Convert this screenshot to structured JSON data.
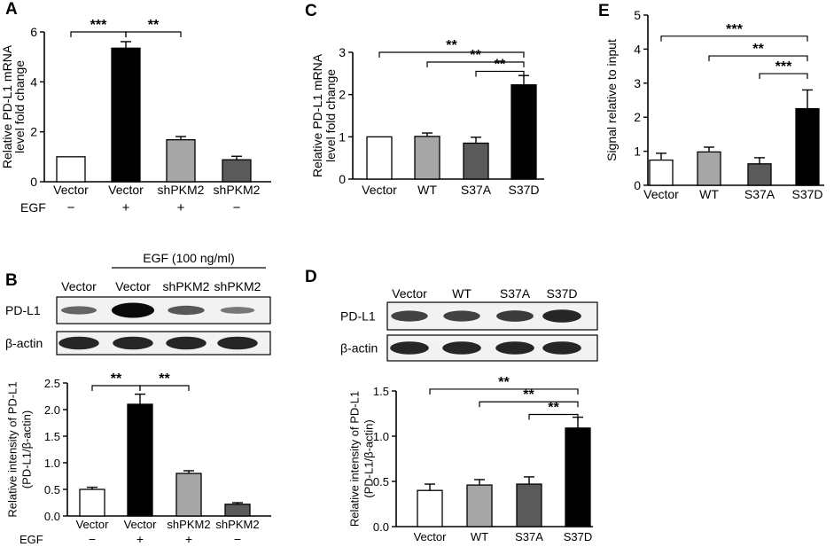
{
  "panels": {
    "A": "A",
    "B": "B",
    "C": "C",
    "D": "D",
    "E": "E"
  },
  "colors": {
    "white": "#ffffff",
    "black": "#000000",
    "light_gray": "#a6a6a6",
    "dark_gray": "#5a5a5a"
  },
  "chart_data": [
    {
      "id": "A",
      "type": "bar",
      "categories": [
        "Vector",
        "Vector",
        "shPKM2",
        "shPKM2"
      ],
      "values": [
        1.0,
        5.35,
        1.68,
        0.88
      ],
      "errors": [
        0.0,
        0.26,
        0.13,
        0.14
      ],
      "fills": [
        "white",
        "black",
        "light_gray",
        "dark_gray"
      ],
      "ylabel": [
        "Relative PD-L1 mRNA",
        "level fold change"
      ],
      "ylim": [
        0,
        6
      ],
      "yticks": [
        "0",
        "2",
        "4",
        "6"
      ],
      "row_label": "EGF",
      "row_values": [
        "−",
        "+",
        "+",
        "−"
      ],
      "annotations": [
        {
          "from": 0,
          "to": 1,
          "text": "***",
          "y": 6.0
        },
        {
          "from": 1,
          "to": 2,
          "text": "**",
          "y": 6.0
        }
      ]
    },
    {
      "id": "B",
      "type": "bar",
      "categories": [
        "Vector",
        "Vector",
        "shPKM2",
        "shPKM2"
      ],
      "values": [
        0.5,
        2.1,
        0.8,
        0.22
      ],
      "errors": [
        0.04,
        0.19,
        0.05,
        0.03
      ],
      "fills": [
        "white",
        "black",
        "light_gray",
        "dark_gray"
      ],
      "ylabel": [
        "Relative intensity of PD-L1",
        "(PD-L1/β-actin)"
      ],
      "ylim": [
        0,
        2.5
      ],
      "yticks": [
        "0.0",
        "0.5",
        "1.0",
        "1.5",
        "2.0",
        "2.5"
      ],
      "row_label": "EGF",
      "row_values": [
        "−",
        "+",
        "+",
        "−"
      ],
      "annotations": [
        {
          "from": 0,
          "to": 1,
          "text": "**",
          "y": 2.45
        },
        {
          "from": 1,
          "to": 2,
          "text": "**",
          "y": 2.45
        }
      ]
    },
    {
      "id": "C",
      "type": "bar",
      "categories": [
        "Vector",
        "WT",
        "S37A",
        "S37D"
      ],
      "values": [
        1.0,
        1.01,
        0.85,
        2.23
      ],
      "errors": [
        0.0,
        0.08,
        0.14,
        0.22
      ],
      "fills": [
        "white",
        "light_gray",
        "dark_gray",
        "black"
      ],
      "ylabel": [
        "Relative PD-L1 mRNA",
        "level fold change"
      ],
      "ylim": [
        0,
        3
      ],
      "yticks": [
        "0",
        "1",
        "2",
        "3"
      ],
      "annotations": [
        {
          "from": 0,
          "to": 3,
          "text": "**",
          "y": 3.0
        },
        {
          "from": 1,
          "to": 3,
          "text": "**",
          "y": 2.77
        },
        {
          "from": 2,
          "to": 3,
          "text": "**",
          "y": 2.55
        }
      ]
    },
    {
      "id": "D",
      "type": "bar",
      "categories": [
        "Vector",
        "WT",
        "S37A",
        "S37D"
      ],
      "values": [
        0.4,
        0.46,
        0.47,
        1.09
      ],
      "errors": [
        0.07,
        0.06,
        0.08,
        0.12
      ],
      "fills": [
        "white",
        "light_gray",
        "dark_gray",
        "black"
      ],
      "ylabel": [
        "Relative intensity of PD-L1",
        "(PD-L1/β-actin)"
      ],
      "ylim": [
        0,
        1.5
      ],
      "yticks": [
        "0.0",
        "0.5",
        "1.0",
        "1.5"
      ],
      "annotations": [
        {
          "from": 0,
          "to": 3,
          "text": "**",
          "y": 1.52
        },
        {
          "from": 1,
          "to": 3,
          "text": "**",
          "y": 1.38
        },
        {
          "from": 2,
          "to": 3,
          "text": "**",
          "y": 1.24
        }
      ]
    },
    {
      "id": "E",
      "type": "bar",
      "categories": [
        "Vector",
        "WT",
        "S37A",
        "S37D"
      ],
      "values": [
        0.74,
        0.98,
        0.63,
        2.25
      ],
      "errors": [
        0.2,
        0.14,
        0.18,
        0.55
      ],
      "fills": [
        "white",
        "light_gray",
        "dark_gray",
        "black"
      ],
      "ylabel": [
        "Signal relative to input"
      ],
      "ylim": [
        0,
        5
      ],
      "yticks": [
        "0",
        "1",
        "2",
        "3",
        "4",
        "5"
      ],
      "annotations": [
        {
          "from": 0,
          "to": 3,
          "text": "***",
          "y": 4.38
        },
        {
          "from": 1,
          "to": 3,
          "text": "**",
          "y": 3.8
        },
        {
          "from": 2,
          "to": 3,
          "text": "***",
          "y": 3.28
        }
      ]
    }
  ],
  "blots": {
    "B": {
      "header": "EGF (100 ng/ml)",
      "lanes": [
        "Vector",
        "Vector",
        "shPKM2",
        "shPKM2"
      ],
      "rows": [
        "PD-L1",
        "β-actin"
      ],
      "pd_intensity": [
        0.35,
        1.0,
        0.45,
        0.22
      ],
      "actin_intensity": [
        0.8,
        0.8,
        0.8,
        0.8
      ]
    },
    "D": {
      "lanes": [
        "Vector",
        "WT",
        "S37A",
        "S37D"
      ],
      "rows": [
        "PD-L1",
        "β-actin"
      ],
      "pd_intensity": [
        0.6,
        0.6,
        0.65,
        0.8
      ],
      "actin_intensity": [
        0.8,
        0.8,
        0.8,
        0.8
      ]
    }
  }
}
